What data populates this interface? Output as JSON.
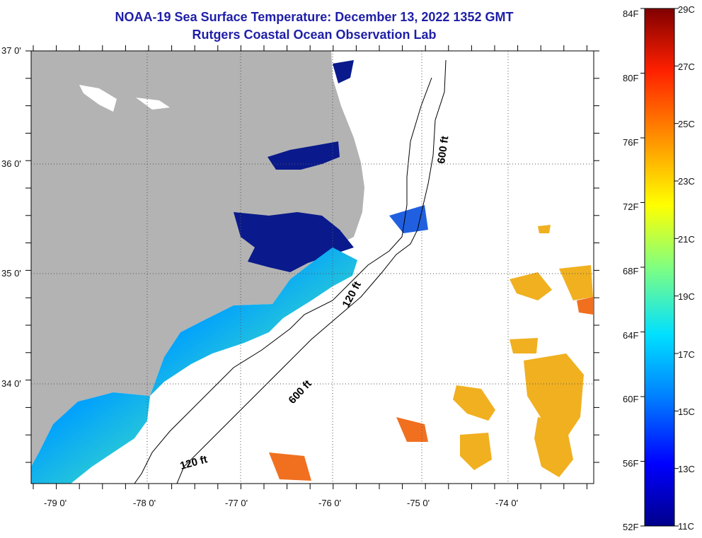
{
  "title": "NOAA-19 Sea Surface Temperature:  December 13, 2022 1352 GMT",
  "subtitle": "Rutgers Coastal Ocean Observation Lab",
  "axes": {
    "lat_labels": [
      "37 0'",
      "36 0'",
      "35 0'",
      "34 0'"
    ],
    "lon_labels": [
      "-79 0'",
      "-78 0'",
      "-77 0'",
      "-76 0'",
      "-75 0'",
      "-74 0'"
    ]
  },
  "contours": {
    "c600_north": "600 ft",
    "c120_mid": "120 ft",
    "c600_south": "600 ft",
    "c120_south": "120 ft"
  },
  "colorbar": {
    "f_labels": [
      "84F",
      "80F",
      "76F",
      "72F",
      "68F",
      "64F",
      "60F",
      "56F",
      "52F"
    ],
    "c_labels": [
      "29C",
      "27C",
      "25C",
      "23C",
      "21C",
      "19C",
      "17C",
      "15C",
      "13C",
      "11C"
    ]
  },
  "colors": {
    "land": "#b3b3b3",
    "title": "#1f1fa8",
    "cold": "#00008b",
    "warm": "#f0a020"
  }
}
